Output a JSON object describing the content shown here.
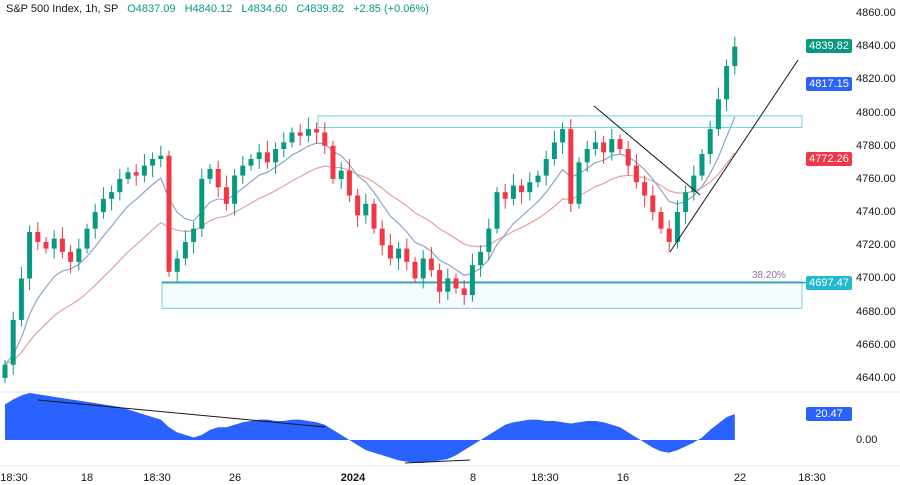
{
  "legend": {
    "title": "S&P 500 Index, 1h, SP",
    "open": "O4837.09",
    "high": "H4840.12",
    "low": "L4834.60",
    "close": "C4839.82",
    "change": "+2.85 (+0.06%)"
  },
  "chart_data": {
    "type": "candlestick",
    "title": "S&P 500 Index, 1h, SP",
    "ylim": [
      4630,
      4870
    ],
    "yticks": [
      "4860.00",
      "4840.00",
      "4820.00",
      "4800.00",
      "4780.00",
      "4760.00",
      "4740.00",
      "4720.00",
      "4700.00",
      "4680.00",
      "4660.00",
      "4640.00"
    ],
    "xticks": [
      {
        "label": "18:30",
        "bold": false
      },
      {
        "label": "18",
        "bold": false
      },
      {
        "label": "18:30",
        "bold": false
      },
      {
        "label": "26",
        "bold": false
      },
      {
        "label": "2024",
        "bold": true
      },
      {
        "label": "8",
        "bold": false
      },
      {
        "label": "18:30",
        "bold": false
      },
      {
        "label": "16",
        "bold": false
      },
      {
        "label": "22",
        "bold": false
      },
      {
        "label": "18:30",
        "bold": false
      }
    ],
    "closes": [
      4648,
      4675,
      4700,
      4728,
      4722,
      4718,
      4724,
      4716,
      4710,
      4718,
      4730,
      4740,
      4748,
      4752,
      4760,
      4764,
      4762,
      4768,
      4772,
      4774,
      4704,
      4712,
      4722,
      4730,
      4760,
      4766,
      4755,
      4745,
      4762,
      4768,
      4772,
      4776,
      4770,
      4778,
      4782,
      4788,
      4786,
      4790,
      4788,
      4780,
      4760,
      4765,
      4750,
      4738,
      4745,
      4730,
      4720,
      4712,
      4718,
      4710,
      4700,
      4712,
      4705,
      4692,
      4700,
      4694,
      4690,
      4708,
      4716,
      4730,
      4752,
      4748,
      4756,
      4752,
      4758,
      4762,
      4772,
      4782,
      4790,
      4745,
      4770,
      4778,
      4782,
      4776,
      4784,
      4778,
      4768,
      4758,
      4750,
      4740,
      4730,
      4722,
      4740,
      4752,
      4762,
      4775,
      4790,
      4808,
      4828,
      4839.82
    ],
    "first_open": 4640,
    "price_tags": [
      {
        "label": "4839.82",
        "value": 4839.82,
        "color": "#089981"
      },
      {
        "label": "4817.15",
        "value": 4817.15,
        "color": "#2962ff"
      },
      {
        "label": "4772.26",
        "value": 4772.26,
        "color": "#f23645"
      },
      {
        "label": "4697.47",
        "value": 4697.47,
        "color": "#22b8cf"
      }
    ],
    "fib_level": {
      "label": "38.20%",
      "value": 4697.47
    },
    "zones": [
      {
        "top": 4798,
        "bottom": 4791
      },
      {
        "top": 4698,
        "bottom": 4682
      }
    ],
    "oscillator": {
      "values": [
        28,
        32,
        35,
        37,
        36,
        35,
        34,
        33,
        32,
        31,
        30,
        29,
        28,
        27,
        26,
        24,
        22,
        20,
        18,
        16,
        10,
        6,
        4,
        2,
        4,
        8,
        10,
        10,
        12,
        14,
        15,
        16,
        16,
        15,
        15,
        16,
        16,
        15,
        14,
        12,
        8,
        4,
        0,
        -4,
        -8,
        -10,
        -12,
        -14,
        -16,
        -17,
        -18,
        -18,
        -17,
        -16,
        -15,
        -12,
        -8,
        -4,
        0,
        4,
        8,
        12,
        14,
        15,
        16,
        16,
        15,
        15,
        14,
        13,
        14,
        15,
        15,
        14,
        12,
        10,
        6,
        2,
        -2,
        -6,
        -9,
        -10,
        -8,
        -5,
        -2,
        2,
        8,
        13,
        18,
        20.47
      ],
      "last_label": "20.47",
      "zero_label": "0.00",
      "color": "#2962ff"
    },
    "colors": {
      "up": "#089981",
      "down": "#f23645",
      "ma_fast": "#8fa3cc",
      "ma_slow": "#e3a0a0"
    }
  }
}
